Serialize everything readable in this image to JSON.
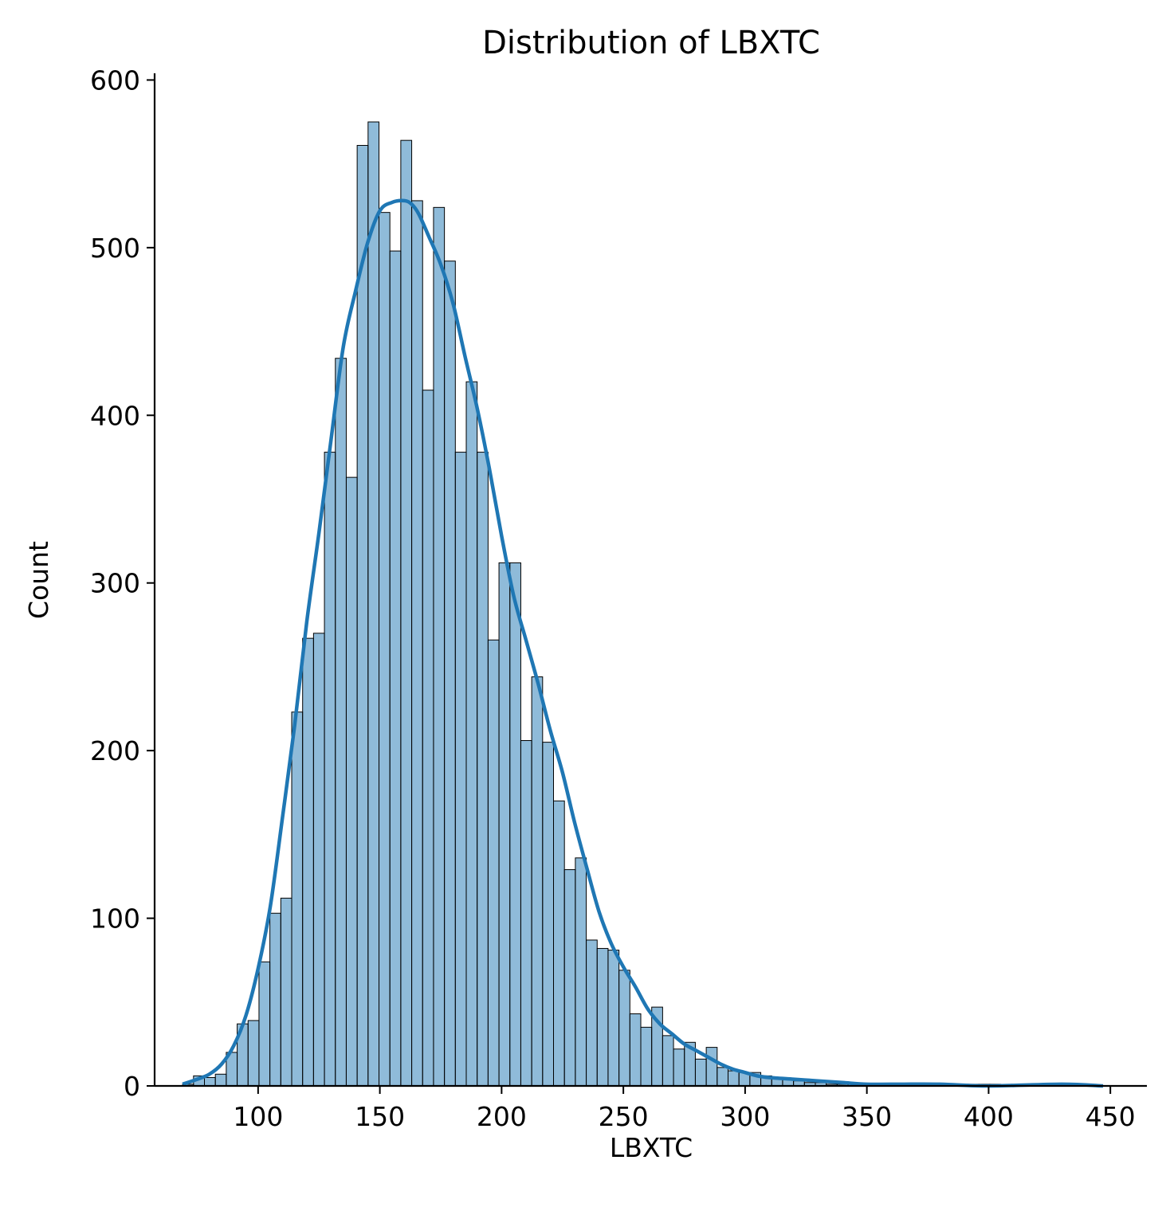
{
  "chart_data": {
    "type": "bar",
    "subtype": "histogram",
    "title": "Distribution of LBXTC",
    "xlabel": "LBXTC",
    "ylabel": "Count",
    "xlim": [
      57.5,
      465
    ],
    "ylim": [
      0,
      604
    ],
    "x_ticks": [
      100,
      150,
      200,
      250,
      300,
      350,
      400,
      450
    ],
    "y_ticks": [
      0,
      100,
      200,
      300,
      400,
      500,
      600
    ],
    "bin_start": 69,
    "bin_width": 4.48,
    "values": [
      1,
      6,
      5,
      7,
      20,
      37,
      39,
      74,
      103,
      112,
      223,
      267,
      270,
      378,
      434,
      363,
      561,
      575,
      521,
      498,
      564,
      528,
      415,
      524,
      492,
      378,
      420,
      378,
      266,
      312,
      312,
      206,
      244,
      205,
      170,
      129,
      136,
      87,
      82,
      81,
      69,
      43,
      35,
      47,
      30,
      22,
      26,
      16,
      23,
      11,
      9,
      8,
      8,
      6,
      5,
      4,
      3,
      2,
      2,
      1,
      1,
      1,
      1,
      1,
      1,
      1,
      1,
      1,
      1,
      1,
      1,
      1,
      1,
      1,
      1,
      0,
      1,
      0,
      0,
      1,
      0,
      0,
      0,
      0
    ],
    "kde": {
      "x": [
        69,
        75,
        80,
        85,
        90,
        95,
        100,
        105,
        110,
        115,
        120,
        125,
        130,
        135,
        140,
        145,
        150,
        155,
        160,
        163,
        166,
        170,
        175,
        180,
        185,
        190,
        195,
        200,
        205,
        210,
        215,
        220,
        225,
        230,
        235,
        240,
        245,
        250,
        255,
        260,
        265,
        270,
        275,
        280,
        285,
        290,
        295,
        300,
        305,
        310,
        320,
        330,
        340,
        350,
        360,
        380,
        400,
        430,
        447
      ],
      "y": [
        1,
        4,
        7,
        13,
        24,
        42,
        70,
        107,
        160,
        215,
        277,
        330,
        386,
        441,
        474,
        503,
        522,
        527,
        528,
        526,
        520,
        507,
        490,
        467,
        435,
        404,
        368,
        328,
        292,
        266,
        240,
        212,
        187,
        157,
        130,
        104,
        85,
        71,
        59,
        46,
        37,
        31,
        25,
        21,
        17,
        13,
        10,
        8,
        6,
        5,
        4,
        3,
        2,
        1,
        1,
        1,
        0,
        1,
        0
      ]
    },
    "bar_color": "#1f77b4",
    "bar_opacity": 0.5,
    "line_color": "#1f77b4",
    "legend": "none",
    "grid": false
  }
}
